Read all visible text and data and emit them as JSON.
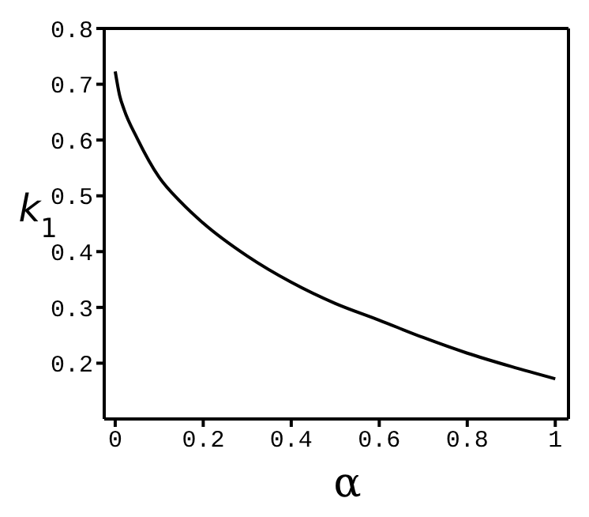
{
  "chart_data": {
    "type": "line",
    "xlabel": "α",
    "ylabel": "k$_{1}$",
    "x": [
      0,
      0.01,
      0.02,
      0.05,
      0.1,
      0.15,
      0.2,
      0.3,
      0.4,
      0.5,
      0.6,
      0.7,
      0.8,
      0.9,
      1
    ],
    "series": [
      {
        "color": "#000000",
        "values": [
          0.723,
          0.68,
          0.655,
          0.603,
          0.533,
          0.488,
          0.451,
          0.392,
          0.345,
          0.307,
          0.277,
          0.246,
          0.218,
          0.194,
          0.172
        ]
      }
    ],
    "xlim": [
      -0.025,
      1.03
    ],
    "xticks": [
      0,
      0.2,
      0.4,
      0.6,
      0.8,
      1
    ],
    "ylim": [
      0.1,
      0.8
    ],
    "yticks": [
      0.2,
      0.3,
      0.4,
      0.5,
      0.6,
      0.7,
      0.8
    ],
    "grid": false,
    "marker": "none",
    "line_style": "solid"
  }
}
